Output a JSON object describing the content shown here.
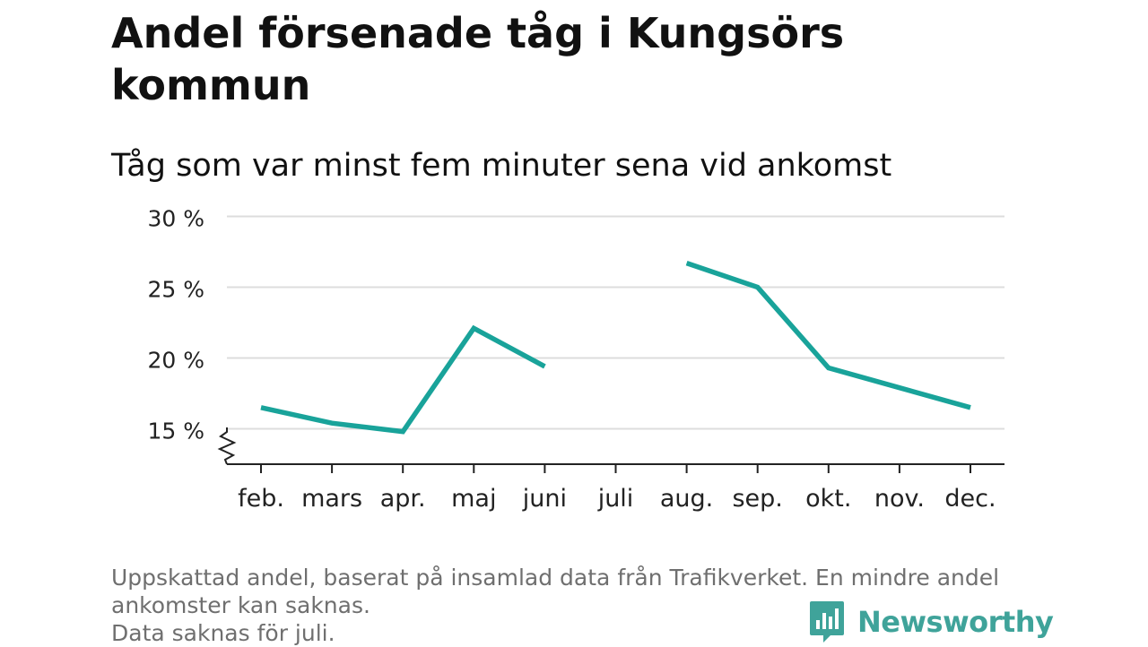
{
  "title": "Andel försenade tåg i Kungsörs kommun",
  "subtitle": "Tåg som var minst fem minuter sena vid ankomst",
  "footnote": {
    "line1": "Uppskattad andel, baserat på insamlad data från Trafikverket. En mindre andel",
    "line2": "ankomster kan saknas.",
    "line3": "Data saknas för juli."
  },
  "brand": {
    "name": "Newsworthy",
    "icon": "newsworthy-logo-icon",
    "color": "#3fa39a"
  },
  "chart_data": {
    "type": "line",
    "categories": [
      "feb.",
      "mars",
      "apr.",
      "maj",
      "juni",
      "juli",
      "aug.",
      "sep.",
      "okt.",
      "nov.",
      "dec."
    ],
    "series": [
      {
        "values": [
          16.5,
          15.4,
          14.8,
          22.1,
          19.4,
          null,
          26.7,
          25.0,
          19.3,
          17.9,
          16.5
        ]
      }
    ],
    "yticks": [
      15,
      20,
      25,
      30
    ],
    "ytick_labels": [
      "15 %",
      "20 %",
      "25 %",
      "30 %"
    ],
    "ylim": [
      12.5,
      30
    ],
    "axis_break": true,
    "grid": true,
    "line_color": "#19a39a",
    "grid_color": "#dddddd"
  }
}
